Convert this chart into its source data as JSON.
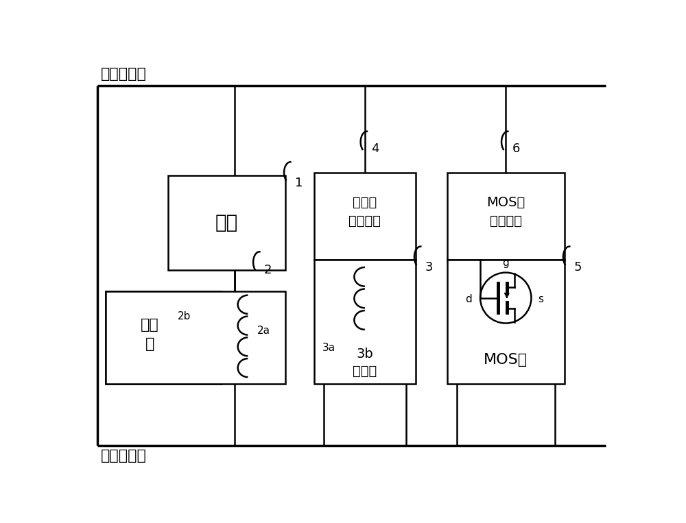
{
  "bg_color": "#ffffff",
  "line_color": "#000000",
  "fig_width": 10.0,
  "fig_height": 7.63,
  "top_label": "外接电源＋",
  "bottom_label": "外接电源－",
  "load_label": "负载",
  "contactor_label": "接触\n器",
  "relay_coil_label_3a": "3a",
  "relay_box_label_3b": "3b",
  "relay_box_label_jidianqi": "继电器",
  "rdc_label_line1": "继电器",
  "rdc_label_line2": "驱动电路",
  "mos_label": "MOS管",
  "mdc_label_line1": "MOS管",
  "mdc_label_line2": "驱动电路",
  "label1": "1",
  "label2": "2",
  "label2a": "2a",
  "label2b": "2b",
  "label3": "3",
  "label4": "4",
  "label5": "5",
  "label6": "6",
  "g_label": "g",
  "d_label": "d",
  "s_label": "s"
}
